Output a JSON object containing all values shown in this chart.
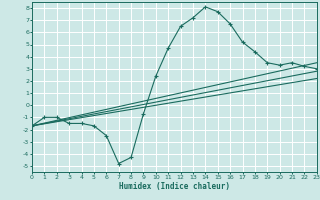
{
  "background_color": "#cde8e6",
  "grid_color": "#ffffff",
  "line_color": "#1a6b5e",
  "xlim": [
    0,
    23
  ],
  "ylim": [
    -5.5,
    8.5
  ],
  "xlabel": "Humidex (Indice chaleur)",
  "xticks": [
    0,
    1,
    2,
    3,
    4,
    5,
    6,
    7,
    8,
    9,
    10,
    11,
    12,
    13,
    14,
    15,
    16,
    17,
    18,
    19,
    20,
    21,
    22,
    23
  ],
  "yticks": [
    -5,
    -4,
    -3,
    -2,
    -1,
    0,
    1,
    2,
    3,
    4,
    5,
    6,
    7,
    8
  ],
  "curve1_x": [
    0,
    1,
    2,
    3,
    4,
    5,
    6,
    7,
    8,
    9,
    10,
    11,
    12,
    13,
    14,
    15,
    16,
    17,
    18,
    19,
    20,
    21,
    22,
    23
  ],
  "curve1_y": [
    -1.7,
    -1.0,
    -1.0,
    -1.5,
    -1.5,
    -1.7,
    -2.5,
    -4.8,
    -4.3,
    -0.7,
    2.4,
    4.7,
    6.5,
    7.2,
    8.1,
    7.7,
    6.7,
    5.2,
    4.4,
    3.5,
    3.3,
    3.5,
    3.2,
    3.0
  ],
  "curve2_x": [
    0,
    23
  ],
  "curve2_y": [
    -1.7,
    3.5
  ],
  "curve3_x": [
    0,
    23
  ],
  "curve3_y": [
    -1.7,
    2.8
  ],
  "curve4_x": [
    0,
    23
  ],
  "curve4_y": [
    -1.7,
    2.2
  ]
}
